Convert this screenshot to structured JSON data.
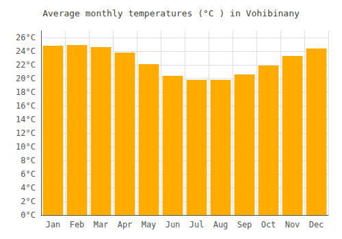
{
  "chart_data": {
    "type": "bar",
    "title": "Average monthly temperatures (°C ) in Vohibinany",
    "categories": [
      "Jan",
      "Feb",
      "Mar",
      "Apr",
      "May",
      "Jun",
      "Jul",
      "Aug",
      "Sep",
      "Oct",
      "Nov",
      "Dec"
    ],
    "values": [
      24.8,
      24.9,
      24.6,
      23.8,
      22.1,
      20.4,
      19.8,
      19.8,
      20.6,
      21.9,
      23.3,
      24.4
    ],
    "color": "#FFAB00",
    "ylim": [
      0,
      27
    ],
    "yticks": [
      {
        "value": 0,
        "label": "0°C"
      },
      {
        "value": 2,
        "label": "2°C"
      },
      {
        "value": 4,
        "label": "4°C"
      },
      {
        "value": 6,
        "label": "6°C"
      },
      {
        "value": 8,
        "label": "8°C"
      },
      {
        "value": 10,
        "label": "10°C"
      },
      {
        "value": 12,
        "label": "12°C"
      },
      {
        "value": 14,
        "label": "14°C"
      },
      {
        "value": 16,
        "label": "16°C"
      },
      {
        "value": 18,
        "label": "18°C"
      },
      {
        "value": 20,
        "label": "20°C"
      },
      {
        "value": 22,
        "label": "22°C"
      },
      {
        "value": 24,
        "label": "24°C"
      },
      {
        "value": 26,
        "label": "26°C"
      }
    ],
    "grid": true
  }
}
